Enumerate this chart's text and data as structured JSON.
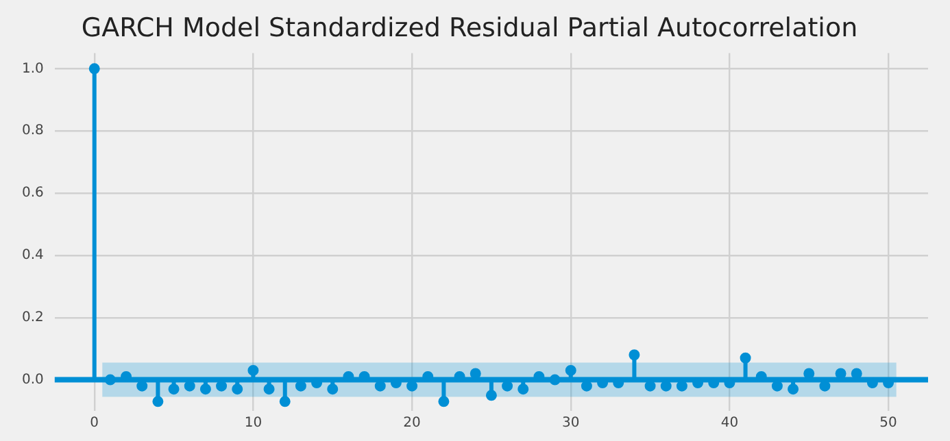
{
  "chart_data": {
    "type": "lollipop",
    "title": "GARCH Model Standardized Residual Partial Autocorrelation",
    "x": [
      0,
      1,
      2,
      3,
      4,
      5,
      6,
      7,
      8,
      9,
      10,
      11,
      12,
      13,
      14,
      15,
      16,
      17,
      18,
      19,
      20,
      21,
      22,
      23,
      24,
      25,
      26,
      27,
      28,
      29,
      30,
      31,
      32,
      33,
      34,
      35,
      36,
      37,
      38,
      39,
      40,
      41,
      42,
      43,
      44,
      45,
      46,
      47,
      48,
      49,
      50
    ],
    "values": [
      1.0,
      0.0,
      0.01,
      -0.02,
      -0.07,
      -0.03,
      -0.02,
      -0.03,
      -0.02,
      -0.03,
      0.03,
      -0.03,
      -0.07,
      -0.02,
      -0.01,
      -0.03,
      0.01,
      0.01,
      -0.02,
      -0.01,
      -0.02,
      0.01,
      -0.07,
      0.01,
      0.02,
      -0.05,
      -0.02,
      -0.03,
      0.01,
      0.0,
      0.03,
      -0.02,
      -0.01,
      -0.01,
      0.08,
      -0.02,
      -0.02,
      -0.02,
      -0.01,
      -0.01,
      -0.01,
      0.07,
      0.01,
      -0.02,
      -0.03,
      0.02,
      -0.02,
      0.02,
      0.02,
      -0.01,
      -0.01
    ],
    "color": "#008fd5",
    "marker": "circle",
    "xlim": [
      -2.5,
      52.5
    ],
    "xticks": [
      0,
      10,
      20,
      30,
      40,
      50
    ],
    "ylim": [
      -0.1,
      1.05
    ],
    "yticks": [
      {
        "value": 0,
        "label": "0.0"
      },
      {
        "value": 0.2,
        "label": "0.2"
      },
      {
        "value": 0.4,
        "label": "0.4"
      },
      {
        "value": 0.6,
        "label": "0.6"
      },
      {
        "value": 0.8,
        "label": "0.8"
      },
      {
        "value": 1,
        "label": "1.0"
      }
    ],
    "grid": true,
    "ref_lines": [
      {
        "axis": "y",
        "value": 0,
        "color": "#008fd5"
      }
    ],
    "bands": [
      {
        "axis": "y",
        "from": -0.055,
        "to": 0.055,
        "color": "#008fd5"
      }
    ]
  }
}
